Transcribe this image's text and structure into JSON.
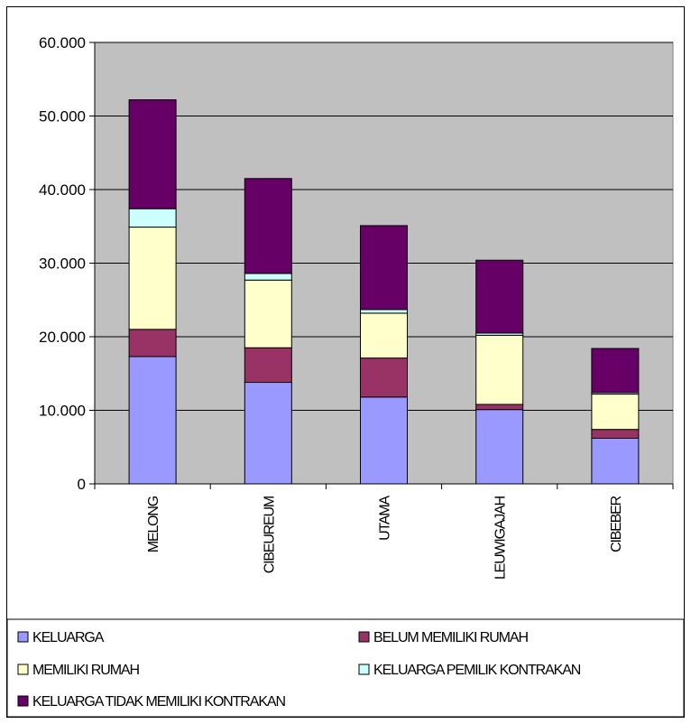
{
  "chart_data": {
    "type": "bar",
    "stacked": true,
    "categories": [
      "MELONG",
      "CIBEUREUM",
      "UTAMA",
      "LEUWIGAJAH",
      "CIBEBER"
    ],
    "series": [
      {
        "name": "KELUARGA",
        "color": "#9999ff",
        "values": [
          17300,
          13800,
          11800,
          10100,
          6200
        ]
      },
      {
        "name": "BELUM MEMILIKI RUMAH",
        "color": "#993366",
        "values": [
          3700,
          4700,
          5300,
          700,
          1200
        ]
      },
      {
        "name": "MEMILIKI RUMAH",
        "color": "#ffffcc",
        "values": [
          13900,
          9200,
          6100,
          9400,
          4800
        ]
      },
      {
        "name": "KELUARGA PEMILIK KONTRAKAN",
        "color": "#ccffff",
        "values": [
          2500,
          900,
          500,
          300,
          200
        ]
      },
      {
        "name": "KELUARGA TIDAK MEMILIKI  KONTRAKAN",
        "color": "#660066",
        "values": [
          14800,
          12900,
          11400,
          9900,
          6000
        ]
      }
    ],
    "y_ticks": [
      "0",
      "10.000",
      "20.000",
      "30.000",
      "40.000",
      "50.000",
      "60.000"
    ],
    "ylim": [
      0,
      60000
    ],
    "grid": true,
    "plot_background": "#c0c0c0",
    "legend_position": "bottom"
  }
}
